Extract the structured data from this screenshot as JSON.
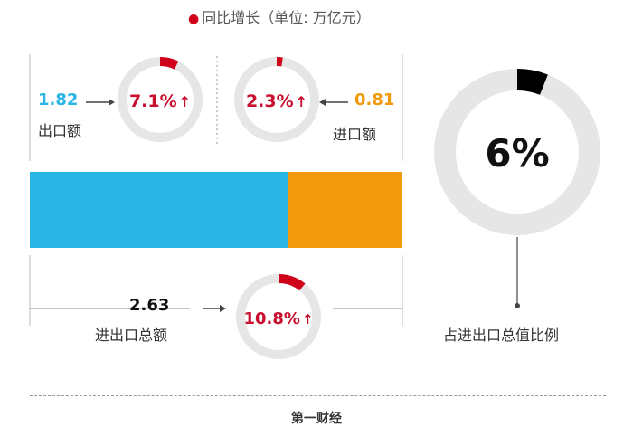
{
  "legend": {
    "marker_color": "#d0021b",
    "text": "同比增长（单位: 万亿元）"
  },
  "chart_data": [
    {
      "type": "bar",
      "orientation": "horizontal-stacked",
      "series": [
        {
          "name": "出口额",
          "value": 1.82,
          "color": "#29b6e6"
        },
        {
          "name": "进口额",
          "value": 0.81,
          "color": "#f29a0e"
        }
      ]
    },
    {
      "type": "pie",
      "style": "donut",
      "slices": [
        {
          "label": "出口额",
          "value_label": "1.82",
          "growth_label": "7.1%",
          "growth_percent": 7.1,
          "growth_direction": "up"
        },
        {
          "label": "进口额",
          "value_label": "0.81",
          "growth_label": "2.3%",
          "growth_percent": 2.3,
          "growth_direction": "up"
        },
        {
          "label": "进出口总额",
          "value_label": "2.63",
          "growth_label": "10.8%",
          "growth_percent": 10.8,
          "growth_direction": "up"
        }
      ],
      "share": {
        "label": "占进出口总值比例",
        "value_label": "6%",
        "percent": 6
      }
    }
  ],
  "colors": {
    "export": "#29b6e6",
    "import": "#f29a0e",
    "growth": "#d0021b",
    "ring": "#e6e6e6",
    "share_arc": "#000000"
  },
  "footer": "第一财经"
}
